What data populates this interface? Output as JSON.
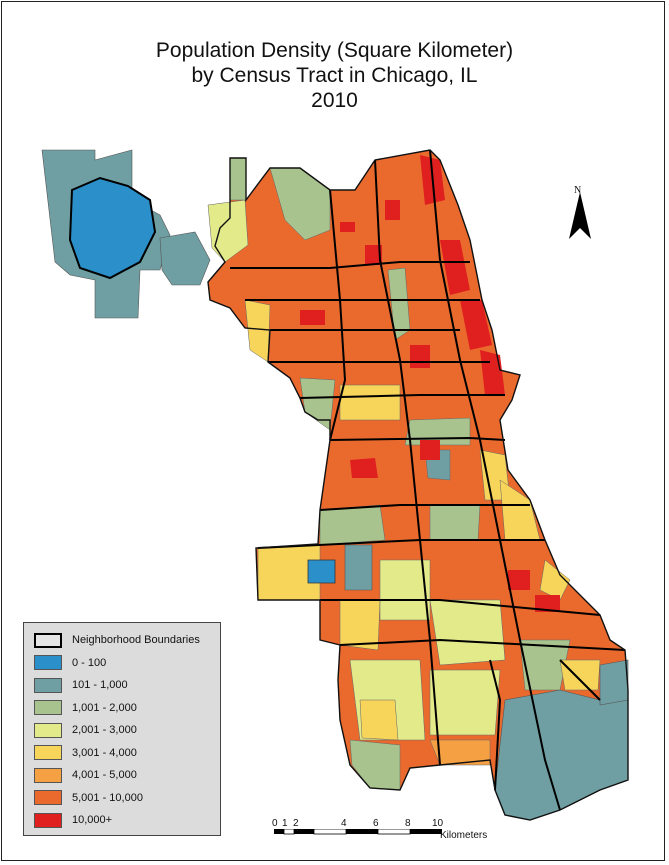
{
  "title": {
    "line1": "Population Density (Square Kilometer)",
    "line2": "by Census Tract in Chicago, IL",
    "line3": "2010"
  },
  "north_arrow": {
    "label": "N"
  },
  "legend": {
    "items": [
      {
        "label": "Neighborhood Boundaries",
        "color": "#e6e6e6",
        "kind": "boundary"
      },
      {
        "label": "0 - 100",
        "color": "#2b8fc9"
      },
      {
        "label": "101 - 1,000",
        "color": "#6f9fa3"
      },
      {
        "label": "1,001 - 2,000",
        "color": "#a8c38e"
      },
      {
        "label": "2,001 - 3,000",
        "color": "#e2ea8a"
      },
      {
        "label": "3,001 - 4,000",
        "color": "#f7d45a"
      },
      {
        "label": "4,001 - 5,000",
        "color": "#f5a043"
      },
      {
        "label": "5,001 - 10,000",
        "color": "#ea6a2e"
      },
      {
        "label": "10,000+",
        "color": "#e01f1f"
      }
    ]
  },
  "scale_bar": {
    "ticks": [
      "0",
      "1",
      "2",
      "4",
      "6",
      "8",
      "10"
    ],
    "unit": "Kilometers"
  },
  "colors": {
    "blue": "#2b8fc9",
    "teal": "#6f9fa3",
    "green": "#a8c38e",
    "lime": "#e2ea8a",
    "yellow": "#f7d45a",
    "orange": "#f5a043",
    "darkorange": "#ea6a2e",
    "red": "#e01f1f"
  }
}
